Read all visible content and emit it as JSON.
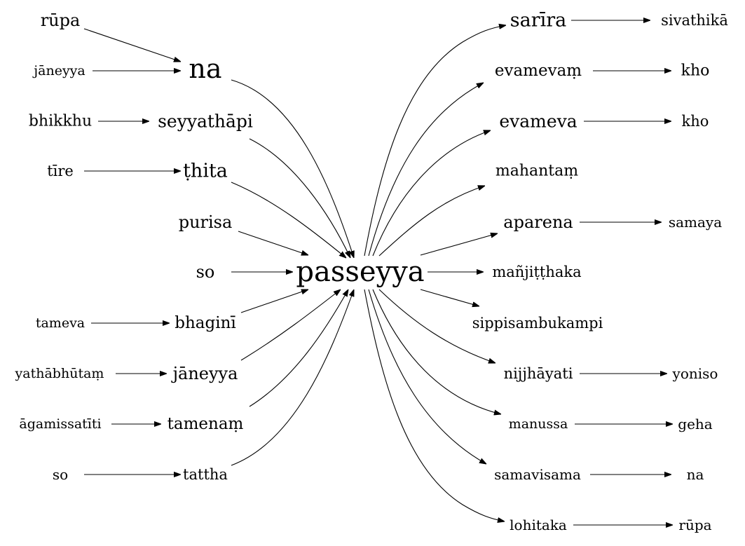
{
  "nodes": {
    "rupa_l": "rūpa",
    "na_c": "na",
    "janeyya_l": "jāneyya",
    "bhikkhu": "bhikkhu",
    "seyyathapi": "seyyathāpi",
    "tire": "tīre",
    "thita": "ṭhita",
    "purisa": "purisa",
    "so_l1": "so",
    "passeyya": "passeyya",
    "tameva": "tameva",
    "bhagini": "bhaginī",
    "yathabhutam": "yathābhūtaṃ",
    "janeyya_c": "jāneyya",
    "agamissatiti": "āgamissatīti",
    "tamenam": "tamenaṃ",
    "so_l2": "so",
    "tattha": "tattha",
    "sarira": "sarīra",
    "sivathika": "sivathikā",
    "evamevam": "evamevaṃ",
    "kho1": "kho",
    "evameva": "evameva",
    "kho2": "kho",
    "mahantam": "mahantaṃ",
    "aparena": "aparena",
    "samaya": "samaya",
    "manjitthaka": "mañjiṭṭhaka",
    "sippi": "sippisambukampi",
    "nijjhayati": "nijjhāyati",
    "yoniso": "yoniso",
    "manussa": "manussa",
    "geha": "geha",
    "samavisama": "samavisama",
    "na_r": "na",
    "lohitaka": "lohitaka",
    "rupa_r": "rūpa"
  }
}
